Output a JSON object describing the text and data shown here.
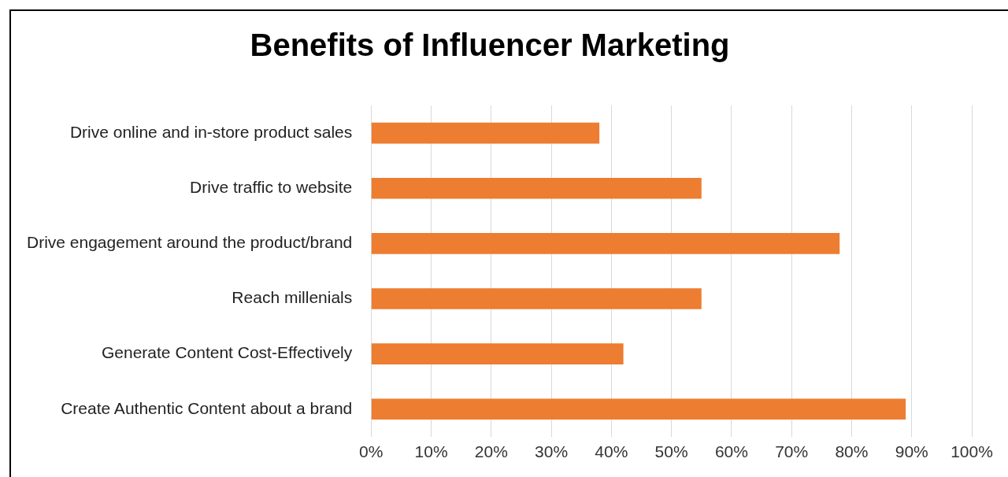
{
  "chart_data": {
    "type": "bar",
    "orientation": "horizontal",
    "title": "Benefits of Influencer Marketing",
    "categories": [
      "Drive online and in-store product sales",
      "Drive traffic to website",
      "Drive engagement around the product/brand",
      "Reach millenials",
      "Generate Content Cost-Effectively",
      "Create Authentic Content about a brand"
    ],
    "values": [
      38,
      55,
      78,
      55,
      42,
      89
    ],
    "color": "#ed7d31",
    "xlim": [
      0,
      100
    ],
    "xticks": [
      {
        "value": 0,
        "label": "0%"
      },
      {
        "value": 10,
        "label": "10%"
      },
      {
        "value": 20,
        "label": "20%"
      },
      {
        "value": 30,
        "label": "30%"
      },
      {
        "value": 40,
        "label": "40%"
      },
      {
        "value": 50,
        "label": "50%"
      },
      {
        "value": 60,
        "label": "60%"
      },
      {
        "value": 70,
        "label": "70%"
      },
      {
        "value": 80,
        "label": "80%"
      },
      {
        "value": 90,
        "label": "90%"
      },
      {
        "value": 100,
        "label": "100%"
      }
    ],
    "grid": "x"
  }
}
